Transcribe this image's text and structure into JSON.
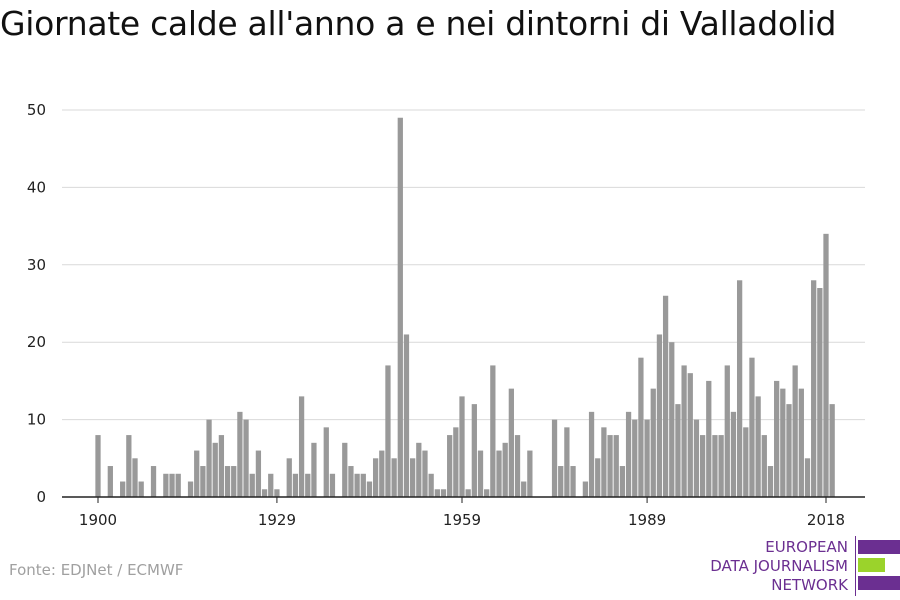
{
  "title": "Giornate calde all'anno a e nei dintorni di Valladolid",
  "source": "Fonte: EDJNet / ECMWF",
  "logo": {
    "line1": "EUROPEAN",
    "line2": "DATA JOURNALISM",
    "line3": "NETWORK",
    "colors": {
      "text": "#6b2f91",
      "bar_primary": "#6b2f91",
      "bar_accent": "#9bd32b"
    }
  },
  "chart_data": {
    "type": "bar",
    "title": "Giornate calde all'anno a e nei dintorni di Valladolid",
    "xlabel": "",
    "ylabel": "",
    "ylim": [
      0,
      50
    ],
    "yticks": [
      0,
      10,
      20,
      30,
      40,
      50
    ],
    "xticks": [
      1900,
      1929,
      1959,
      1989,
      2018
    ],
    "grid": true,
    "bar_color": "#999999",
    "x": [
      1900,
      1901,
      1902,
      1903,
      1904,
      1905,
      1906,
      1907,
      1908,
      1909,
      1910,
      1911,
      1912,
      1913,
      1914,
      1915,
      1916,
      1917,
      1918,
      1919,
      1920,
      1921,
      1922,
      1923,
      1924,
      1925,
      1926,
      1927,
      1928,
      1929,
      1930,
      1931,
      1932,
      1933,
      1934,
      1935,
      1936,
      1937,
      1938,
      1939,
      1940,
      1941,
      1942,
      1943,
      1944,
      1945,
      1946,
      1947,
      1948,
      1949,
      1950,
      1951,
      1952,
      1953,
      1954,
      1955,
      1956,
      1957,
      1958,
      1959,
      1960,
      1961,
      1962,
      1963,
      1964,
      1965,
      1966,
      1967,
      1968,
      1969,
      1970,
      1971,
      1972,
      1973,
      1974,
      1975,
      1976,
      1977,
      1978,
      1979,
      1980,
      1981,
      1982,
      1983,
      1984,
      1985,
      1986,
      1987,
      1988,
      1989,
      1990,
      1991,
      1992,
      1993,
      1994,
      1995,
      1996,
      1997,
      1998,
      1999,
      2000,
      2001,
      2002,
      2003,
      2004,
      2005,
      2006,
      2007,
      2008,
      2009,
      2010,
      2011,
      2012,
      2013,
      2014,
      2015,
      2016,
      2017,
      2018,
      2019
    ],
    "values": [
      8,
      0,
      4,
      0,
      2,
      8,
      5,
      2,
      0,
      4,
      0,
      3,
      3,
      3,
      0,
      2,
      6,
      4,
      10,
      7,
      8,
      4,
      4,
      11,
      10,
      3,
      6,
      1,
      3,
      1,
      0,
      5,
      3,
      13,
      3,
      7,
      0,
      9,
      3,
      0,
      7,
      4,
      3,
      3,
      2,
      5,
      6,
      17,
      5,
      49,
      21,
      5,
      7,
      6,
      3,
      1,
      1,
      8,
      9,
      13,
      1,
      12,
      6,
      1,
      17,
      6,
      7,
      14,
      8,
      2,
      6,
      0,
      0,
      0,
      10,
      4,
      9,
      4,
      0,
      2,
      11,
      5,
      9,
      8,
      8,
      4,
      11,
      10,
      18,
      10,
      14,
      21,
      26,
      20,
      12,
      17,
      16,
      10,
      8,
      15,
      8,
      8,
      17,
      11,
      28,
      9,
      18,
      13,
      8,
      4,
      15,
      14,
      12,
      17,
      14,
      5,
      28,
      27,
      34,
      12
    ]
  }
}
